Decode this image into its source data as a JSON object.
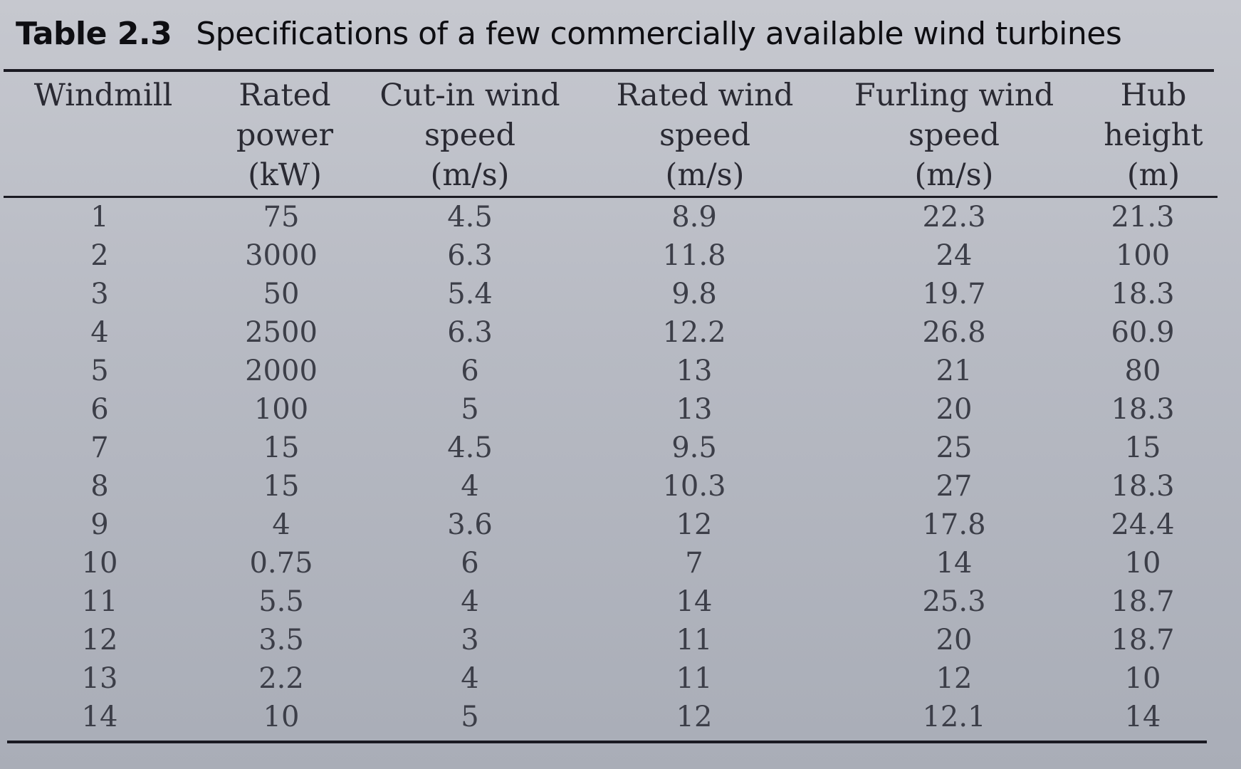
{
  "caption": {
    "label": "Table 2.3",
    "title": "Specifications of a few commercially available wind turbines"
  },
  "table": {
    "headers": [
      {
        "lines": [
          "Windmill"
        ]
      },
      {
        "lines": [
          "Rated",
          "power",
          "(kW)"
        ]
      },
      {
        "lines": [
          "Cut-in wind",
          "speed",
          "(m/s)"
        ]
      },
      {
        "lines": [
          "Rated wind",
          "speed",
          "(m/s)"
        ]
      },
      {
        "lines": [
          "Furling wind",
          "speed",
          "(m/s)"
        ]
      },
      {
        "lines": [
          "Hub",
          "height",
          "(m)"
        ]
      }
    ],
    "rows": [
      [
        "1",
        "75",
        "4.5",
        "8.9",
        "22.3",
        "21.3"
      ],
      [
        "2",
        "3000",
        "6.3",
        "11.8",
        "24",
        "100"
      ],
      [
        "3",
        "50",
        "5.4",
        "9.8",
        "19.7",
        "18.3"
      ],
      [
        "4",
        "2500",
        "6.3",
        "12.2",
        "26.8",
        "60.9"
      ],
      [
        "5",
        "2000",
        "6",
        "13",
        "21",
        "80"
      ],
      [
        "6",
        "100",
        "5",
        "13",
        "20",
        "18.3"
      ],
      [
        "7",
        "15",
        "4.5",
        "9.5",
        "25",
        "15"
      ],
      [
        "8",
        "15",
        "4",
        "10.3",
        "27",
        "18.3"
      ],
      [
        "9",
        "4",
        "3.6",
        "12",
        "17.8",
        "24.4"
      ],
      [
        "10",
        "0.75",
        "6",
        "7",
        "14",
        "10"
      ],
      [
        "11",
        "5.5",
        "4",
        "14",
        "25.3",
        "18.7"
      ],
      [
        "12",
        "3.5",
        "3",
        "11",
        "20",
        "18.7"
      ],
      [
        "13",
        "2.2",
        "4",
        "11",
        "12",
        "10"
      ],
      [
        "14",
        "10",
        "5",
        "12",
        "12.1",
        "14"
      ]
    ]
  }
}
